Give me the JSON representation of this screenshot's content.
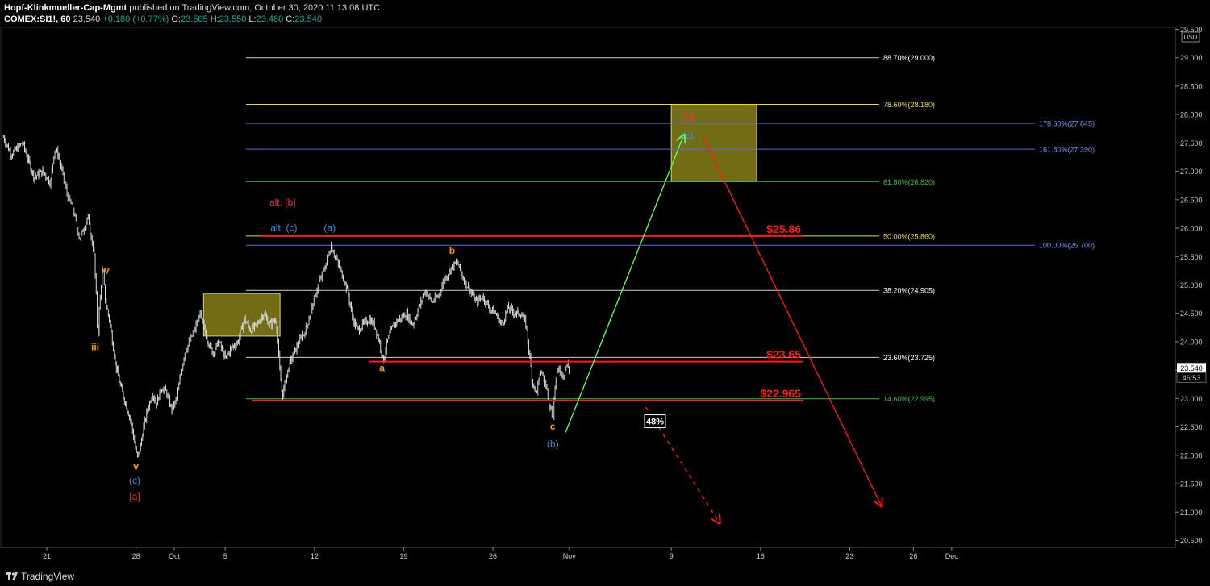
{
  "header": {
    "author": "Hopf-Klinkmueller-Cap-Mgmt",
    "published": "published on TradingView.com, October 30, 2020 11:13:08 UTC",
    "symbol": "COMEX:SI1!, 60",
    "last": "23.540",
    "change": "+0.180 (+0.77%)",
    "o_label": "O:",
    "o": "23.505",
    "h_label": "H:",
    "h": "23.550",
    "l_label": "L:",
    "l": "23.480",
    "c_label": "C:",
    "c": "23.540"
  },
  "footer": {
    "brand": "TradingView"
  },
  "colors": {
    "background": "#000000",
    "candles": "#d9d9d9",
    "red": "#ff1a1a",
    "orange": "#f39c12",
    "blue": "#3d8fe0",
    "crimson": "#e8344e",
    "green_arrow": "#66ff66",
    "box_fill": "#a0961e",
    "fib_white": "#cfcfcf",
    "fib_yellow": "#e8d84a",
    "fib_green": "#3fbf3f",
    "ext_blue": "#5a6fd8"
  },
  "chart_data": {
    "type": "candlestick",
    "y_axis": {
      "currency": "USD",
      "range": [
        20.5,
        29.5
      ],
      "ticks": [
        "29.500",
        "29.000",
        "28.500",
        "28.000",
        "27.500",
        "27.000",
        "26.500",
        "26.000",
        "25.500",
        "25.000",
        "24.500",
        "24.000",
        "23.500",
        "23.000",
        "22.500",
        "22.000",
        "21.500",
        "21.000",
        "20.500"
      ],
      "last_price": "23.540",
      "countdown": "46:53"
    },
    "x_axis": {
      "ticks": [
        {
          "label": "21",
          "day": 0
        },
        {
          "label": "28",
          "day": 7
        },
        {
          "label": "Oct",
          "day": 10
        },
        {
          "label": "5",
          "day": 14
        },
        {
          "label": "12",
          "day": 21
        },
        {
          "label": "19",
          "day": 28
        },
        {
          "label": "26",
          "day": 35
        },
        {
          "label": "Nov",
          "day": 41
        },
        {
          "label": "9",
          "day": 49
        },
        {
          "label": "16",
          "day": 56
        },
        {
          "label": "23",
          "day": 63
        },
        {
          "label": "26",
          "day": 68
        },
        {
          "label": "Dec",
          "day": 71
        }
      ]
    },
    "price_path": [
      [
        -3.4,
        27.6
      ],
      [
        -2.8,
        27.3
      ],
      [
        -1.9,
        27.5
      ],
      [
        -1.0,
        26.9
      ],
      [
        -0.3,
        27.0
      ],
      [
        0.3,
        26.8
      ],
      [
        0.6,
        27.4
      ],
      [
        0.9,
        27.3
      ],
      [
        1.3,
        26.9
      ],
      [
        1.6,
        26.6
      ],
      [
        2.1,
        26.3
      ],
      [
        2.6,
        25.8
      ],
      [
        3.2,
        26.2
      ],
      [
        3.5,
        25.8
      ],
      [
        3.7,
        25.6
      ],
      [
        3.9,
        24.7
      ],
      [
        4.0,
        24.0
      ],
      [
        4.1,
        24.5
      ],
      [
        4.3,
        25.1
      ],
      [
        4.4,
        25.3
      ],
      [
        4.6,
        24.7
      ],
      [
        4.9,
        24.4
      ],
      [
        5.1,
        24.1
      ],
      [
        5.4,
        23.6
      ],
      [
        5.8,
        23.2
      ],
      [
        6.2,
        22.9
      ],
      [
        6.6,
        22.6
      ],
      [
        6.9,
        22.2
      ],
      [
        7.1,
        21.95
      ],
      [
        7.3,
        22.1
      ],
      [
        7.6,
        22.5
      ],
      [
        7.9,
        22.8
      ],
      [
        8.3,
        23.1
      ],
      [
        8.6,
        22.9
      ],
      [
        9.0,
        23.2
      ],
      [
        9.4,
        23.1
      ],
      [
        9.8,
        22.8
      ],
      [
        10.2,
        23.0
      ],
      [
        10.5,
        23.4
      ],
      [
        10.8,
        23.8
      ],
      [
        11.2,
        24.0
      ],
      [
        11.6,
        24.2
      ],
      [
        12.0,
        24.5
      ],
      [
        12.5,
        24.1
      ],
      [
        13.0,
        23.8
      ],
      [
        13.5,
        24.0
      ],
      [
        14.0,
        23.7
      ],
      [
        14.5,
        23.9
      ],
      [
        15.0,
        24.0
      ],
      [
        15.5,
        24.4
      ],
      [
        16.0,
        24.2
      ],
      [
        16.5,
        24.3
      ],
      [
        17.0,
        24.5
      ],
      [
        17.5,
        24.3
      ],
      [
        18.0,
        24.4
      ],
      [
        18.3,
        23.4
      ],
      [
        18.5,
        23.05
      ],
      [
        18.8,
        23.4
      ],
      [
        19.2,
        23.7
      ],
      [
        19.8,
        24.0
      ],
      [
        20.3,
        24.2
      ],
      [
        20.8,
        24.6
      ],
      [
        21.3,
        25.0
      ],
      [
        21.8,
        25.3
      ],
      [
        22.3,
        25.7
      ],
      [
        22.8,
        25.4
      ],
      [
        23.3,
        25.1
      ],
      [
        23.6,
        24.9
      ],
      [
        24.0,
        24.4
      ],
      [
        24.4,
        24.2
      ],
      [
        24.8,
        24.3
      ],
      [
        25.3,
        24.4
      ],
      [
        25.7,
        24.3
      ],
      [
        26.1,
        24.0
      ],
      [
        26.4,
        23.65
      ],
      [
        26.7,
        24.0
      ],
      [
        27.2,
        24.3
      ],
      [
        27.7,
        24.4
      ],
      [
        28.2,
        24.5
      ],
      [
        28.7,
        24.3
      ],
      [
        29.2,
        24.6
      ],
      [
        29.7,
        24.9
      ],
      [
        30.2,
        24.7
      ],
      [
        30.7,
        24.8
      ],
      [
        31.2,
        25.1
      ],
      [
        31.7,
        25.3
      ],
      [
        32.2,
        25.4
      ],
      [
        32.7,
        25.1
      ],
      [
        33.2,
        24.9
      ],
      [
        33.7,
        24.7
      ],
      [
        34.2,
        24.8
      ],
      [
        34.7,
        24.6
      ],
      [
        35.2,
        24.5
      ],
      [
        35.7,
        24.3
      ],
      [
        36.2,
        24.6
      ],
      [
        36.7,
        24.5
      ],
      [
        37.2,
        24.5
      ],
      [
        37.6,
        24.3
      ],
      [
        37.9,
        23.7
      ],
      [
        38.1,
        23.3
      ],
      [
        38.4,
        23.1
      ],
      [
        38.8,
        23.5
      ],
      [
        39.2,
        23.2
      ],
      [
        39.5,
        22.85
      ],
      [
        39.7,
        22.65
      ],
      [
        39.9,
        23.3
      ],
      [
        40.2,
        23.55
      ],
      [
        40.5,
        23.4
      ],
      [
        40.8,
        23.6
      ],
      [
        41.0,
        23.5
      ]
    ],
    "boxes": [
      {
        "d1": 12.3,
        "d2": 18.3,
        "top": 24.85,
        "bottom": 24.1
      },
      {
        "d1": 49.0,
        "d2": 55.7,
        "top": 28.18,
        "bottom": 26.82
      }
    ],
    "fib_retracement": {
      "levels": [
        {
          "label": "88.70%(29.000)",
          "price": 29.0,
          "color": "white"
        },
        {
          "label": "78.60%(28.180)",
          "price": 28.18,
          "color": "yellow"
        },
        {
          "label": "61.80%(26.820)",
          "price": 26.82,
          "color": "green"
        },
        {
          "label": "50.00%(25.860)",
          "price": 25.86,
          "color": "yellow"
        },
        {
          "label": "38.20%(24.905)",
          "price": 24.905,
          "color": "white"
        },
        {
          "label": "23.60%(23.725)",
          "price": 23.725,
          "color": "white"
        },
        {
          "label": "14.60%(22.995)",
          "price": 22.995,
          "color": "green"
        }
      ]
    },
    "fib_extension": {
      "levels": [
        {
          "label": "178.60%(27.845)",
          "price": 27.845
        },
        {
          "label": "161.80%(27.390)",
          "price": 27.39
        },
        {
          "label": "100.00%(25.700)",
          "price": 25.7
        }
      ]
    },
    "support_resistance": [
      {
        "label": "$25.86",
        "price": 25.86
      },
      {
        "label": "$23.65",
        "price": 23.65
      },
      {
        "label": "$22.965",
        "price": 22.965
      }
    ],
    "wave_labels": [
      {
        "text": "iv",
        "day": 4.6,
        "price": 25.2,
        "color": "orange"
      },
      {
        "text": "iii",
        "day": 3.8,
        "price": 23.85,
        "color": "orange"
      },
      {
        "text": "v",
        "day": 7.0,
        "price": 21.75,
        "color": "orange"
      },
      {
        "text": "(c)",
        "day": 6.9,
        "price": 21.5,
        "color": "blue"
      },
      {
        "text": "[a]",
        "day": 6.9,
        "price": 21.22,
        "color": "crimson"
      },
      {
        "text": "alt. [b]",
        "day": 18.5,
        "price": 26.4,
        "color": "crimson"
      },
      {
        "text": "alt. (c)",
        "day": 18.6,
        "price": 25.95,
        "color": "blue"
      },
      {
        "text": "(a)",
        "day": 22.2,
        "price": 25.95,
        "color": "blue"
      },
      {
        "text": "b",
        "day": 31.8,
        "price": 25.55,
        "color": "orange"
      },
      {
        "text": "a",
        "day": 26.3,
        "price": 23.48,
        "color": "orange"
      },
      {
        "text": "c",
        "day": 39.7,
        "price": 22.45,
        "color": "orange"
      },
      {
        "text": "(b)",
        "day": 39.7,
        "price": 22.15,
        "color": "blue"
      },
      {
        "text": "[b]",
        "day": 50.3,
        "price": 27.9,
        "color": "crimson"
      },
      {
        "text": "(c)",
        "day": 50.3,
        "price": 27.58,
        "color": "blue"
      }
    ],
    "probability_label": "48%",
    "arrows": [
      {
        "style": "solid",
        "color": "green",
        "from": [
          40.7,
          22.4
        ],
        "to": [
          50.0,
          27.65
        ]
      },
      {
        "style": "solid",
        "color": "red",
        "from": [
          51.5,
          27.6
        ],
        "to": [
          65.5,
          21.1
        ]
      },
      {
        "style": "dashed",
        "color": "red",
        "from": [
          47.0,
          22.85
        ],
        "to": [
          52.8,
          20.8
        ]
      }
    ]
  }
}
